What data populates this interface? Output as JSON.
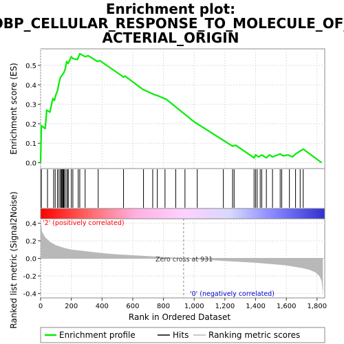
{
  "chart_data": {
    "type": "line",
    "title_lines": [
      "Enrichment plot:",
      "GOBP_CELLULAR_RESPONSE_TO_MOLECULE_OF_B",
      "ACTERIAL_ORIGIN"
    ],
    "ylabel_top": "Enrichment score (ES)",
    "ylabel_bottom": "Ranked list metric (Signal2Noise)",
    "xlabel": "Rank in Ordered Dataset",
    "x_ticks": [
      "0",
      "200",
      "400",
      "600",
      "800",
      "1,000",
      "1,200",
      "1,400",
      "1,600",
      "1,800"
    ],
    "x_tick_values": [
      0,
      200,
      400,
      600,
      800,
      1000,
      1200,
      1400,
      1600,
      1800
    ],
    "es_ticks": [
      "0.0",
      "0.1",
      "0.2",
      "0.3",
      "0.4",
      "0.5"
    ],
    "es_tick_values": [
      0.0,
      0.1,
      0.2,
      0.3,
      0.4,
      0.5
    ],
    "metric_ticks": [
      "0.4",
      "0.2",
      "0.0",
      "-0.2",
      "-0.4"
    ],
    "metric_tick_values": [
      0.4,
      0.2,
      0.0,
      -0.2,
      -0.4
    ],
    "xlim": [
      0,
      1850
    ],
    "es_ylim": [
      -0.03,
      0.585
    ],
    "metric_ylim": [
      -0.45,
      0.45
    ],
    "es_curve": {
      "x": [
        0,
        5,
        30,
        40,
        60,
        80,
        90,
        100,
        110,
        120,
        130,
        140,
        150,
        160,
        170,
        180,
        200,
        210,
        240,
        255,
        290,
        310,
        370,
        385,
        540,
        550,
        660,
        670,
        740,
        760,
        820,
        1000,
        1180,
        1250,
        1270,
        1390,
        1400,
        1420,
        1440,
        1470,
        1490,
        1510,
        1560,
        1580,
        1610,
        1640,
        1660,
        1690,
        1710,
        1830
      ],
      "y": [
        0.0,
        0.19,
        0.175,
        0.27,
        0.26,
        0.33,
        0.32,
        0.35,
        0.37,
        0.41,
        0.44,
        0.45,
        0.46,
        0.48,
        0.52,
        0.51,
        0.545,
        0.535,
        0.53,
        0.56,
        0.545,
        0.55,
        0.52,
        0.525,
        0.44,
        0.445,
        0.38,
        0.375,
        0.35,
        0.345,
        0.325,
        0.21,
        0.12,
        0.085,
        0.09,
        0.025,
        0.04,
        0.03,
        0.04,
        0.025,
        0.04,
        0.03,
        0.045,
        0.035,
        0.04,
        0.03,
        0.045,
        0.06,
        0.07,
        0.0
      ]
    },
    "hits": [
      5,
      45,
      85,
      95,
      110,
      120,
      130,
      135,
      140,
      145,
      150,
      155,
      165,
      175,
      180,
      200,
      210,
      245,
      255,
      290,
      375,
      540,
      670,
      730,
      760,
      810,
      880,
      940,
      1020,
      1190,
      1250,
      1260,
      1390,
      1400,
      1410,
      1430,
      1440,
      1470,
      1510,
      1560,
      1570,
      1620,
      1660,
      1690,
      1710
    ],
    "metric_curve": {
      "x": [
        0,
        10,
        30,
        60,
        100,
        150,
        200,
        300,
        400,
        500,
        600,
        700,
        800,
        900,
        931,
        1000,
        1100,
        1200,
        1300,
        1400,
        1500,
        1600,
        1700,
        1750,
        1790,
        1815,
        1830,
        1838
      ],
      "y": [
        0.45,
        0.3,
        0.24,
        0.19,
        0.15,
        0.12,
        0.1,
        0.08,
        0.06,
        0.045,
        0.035,
        0.025,
        0.015,
        0.005,
        0.0,
        -0.01,
        -0.02,
        -0.03,
        -0.04,
        -0.05,
        -0.065,
        -0.08,
        -0.11,
        -0.13,
        -0.16,
        -0.2,
        -0.26,
        -0.42
      ]
    },
    "pos_label": "'2' (positively correlated)",
    "neg_label": "'0' (negatively correlated)",
    "zero_cross_label": "Zero cross at 931",
    "zero_cross": 931,
    "legend": [
      "Enrichment profile",
      "Hits",
      "Ranking metric scores"
    ],
    "colors": {
      "es_line": "#00ee00",
      "hit_line": "#000000",
      "metric_fill": "#b8b8b8",
      "pos_label": "#ff0000",
      "neg_label": "#0000cc",
      "gradient": [
        "#ff0000",
        "#ff6666",
        "#ffb0e0",
        "#ffd0ff",
        "#d8d8ff",
        "#8080ff",
        "#3030d0"
      ]
    }
  }
}
